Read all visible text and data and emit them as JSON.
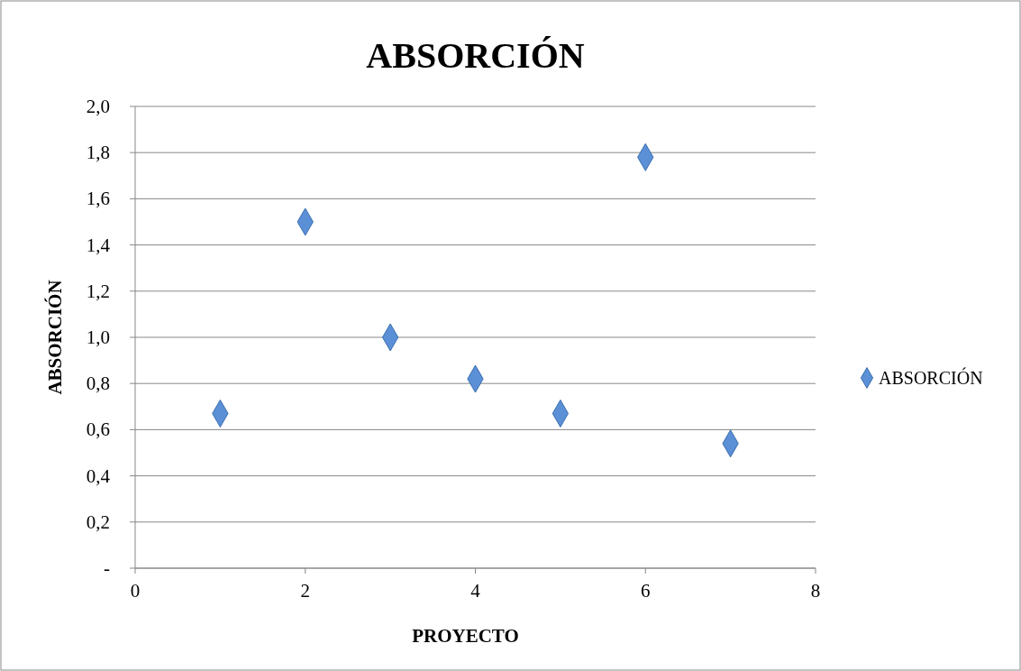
{
  "chart_data": {
    "type": "scatter",
    "title": "ABSORCIÓN",
    "xlabel": "PROYECTO",
    "ylabel": "ABSORCIÓN",
    "x": [
      1,
      2,
      3,
      4,
      5,
      6,
      7
    ],
    "series": [
      {
        "name": "ABSORCIÓN",
        "color": "#5b8fd6",
        "values": [
          0.67,
          1.5,
          1.0,
          0.82,
          0.67,
          1.78,
          0.54
        ]
      }
    ],
    "xlim": [
      0,
      8
    ],
    "ylim": [
      0,
      2
    ],
    "xticks": [
      0,
      2,
      4,
      6,
      8
    ],
    "yticks": [
      {
        "value": 0,
        "label": "-"
      },
      {
        "value": 0.2,
        "label": "0,2"
      },
      {
        "value": 0.4,
        "label": "0,4"
      },
      {
        "value": 0.6,
        "label": "0,6"
      },
      {
        "value": 0.8,
        "label": "0,8"
      },
      {
        "value": 1,
        "label": "1,0"
      },
      {
        "value": 1.2,
        "label": "1,2"
      },
      {
        "value": 1.4,
        "label": "1,4"
      },
      {
        "value": 1.6,
        "label": "1,6"
      },
      {
        "value": 1.8,
        "label": "1,8"
      },
      {
        "value": 2,
        "label": "2,0"
      }
    ],
    "grid": "y",
    "legend": "right",
    "marker": "diamond"
  }
}
